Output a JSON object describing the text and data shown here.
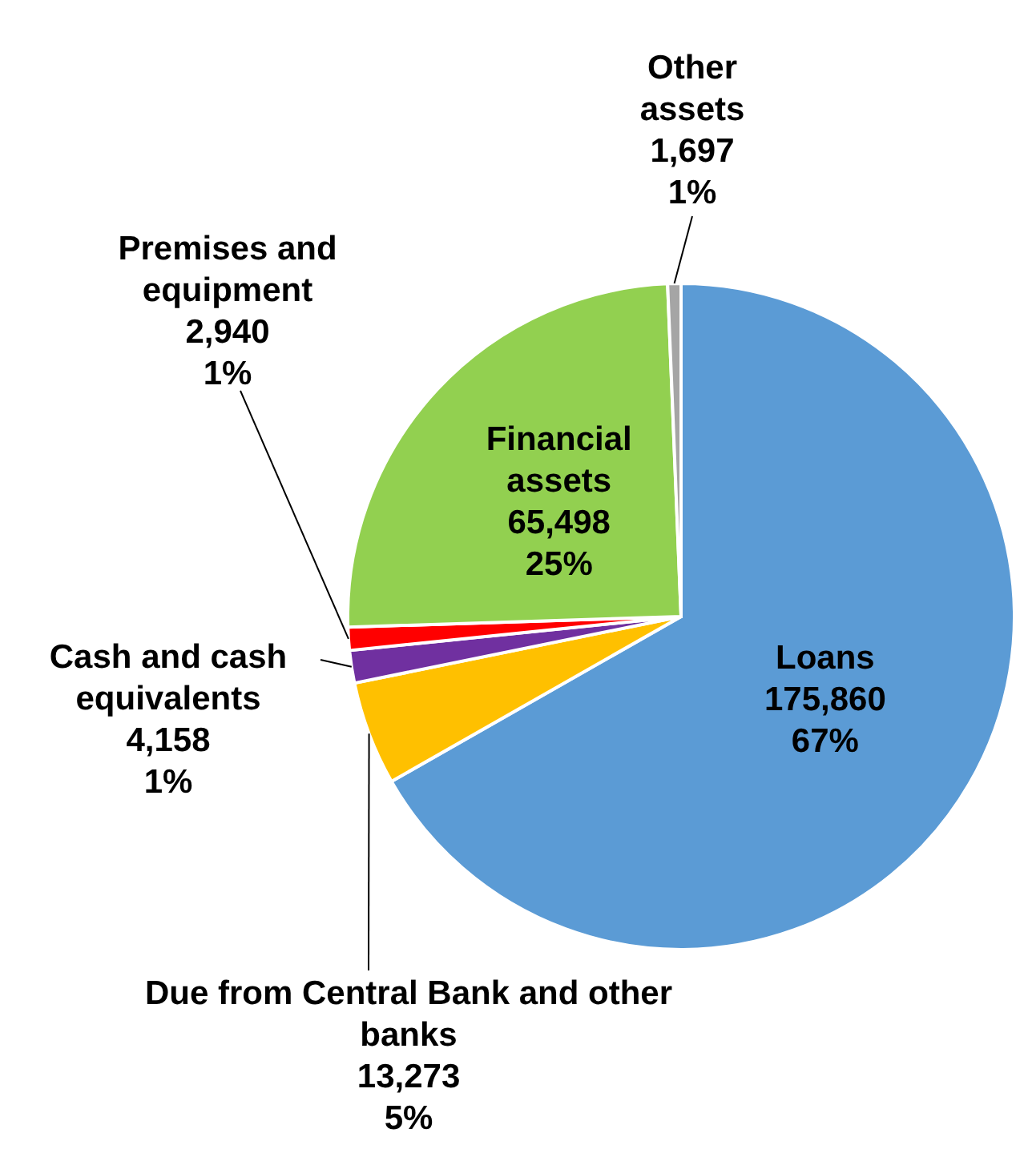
{
  "chart_data": {
    "type": "pie",
    "categories": [
      "Loans",
      "Due from Central Bank and other\nbanks",
      "Cash and cash\nequivalents",
      "Premises and\nequipment",
      "Financial\nassets",
      "Other\nassets"
    ],
    "values": [
      175860,
      13273,
      4158,
      2940,
      65498,
      1697
    ],
    "colors": [
      "#5b9bd5",
      "#ffc000",
      "#7030a0",
      "#ff0000",
      "#92d050",
      "#a5a5a5"
    ],
    "value_labels": [
      "175,860\n67%",
      "13,273\n5%",
      "4,158\n1%",
      "2,940\n1%",
      "65,498\n25%",
      "1,697\n1%"
    ]
  }
}
